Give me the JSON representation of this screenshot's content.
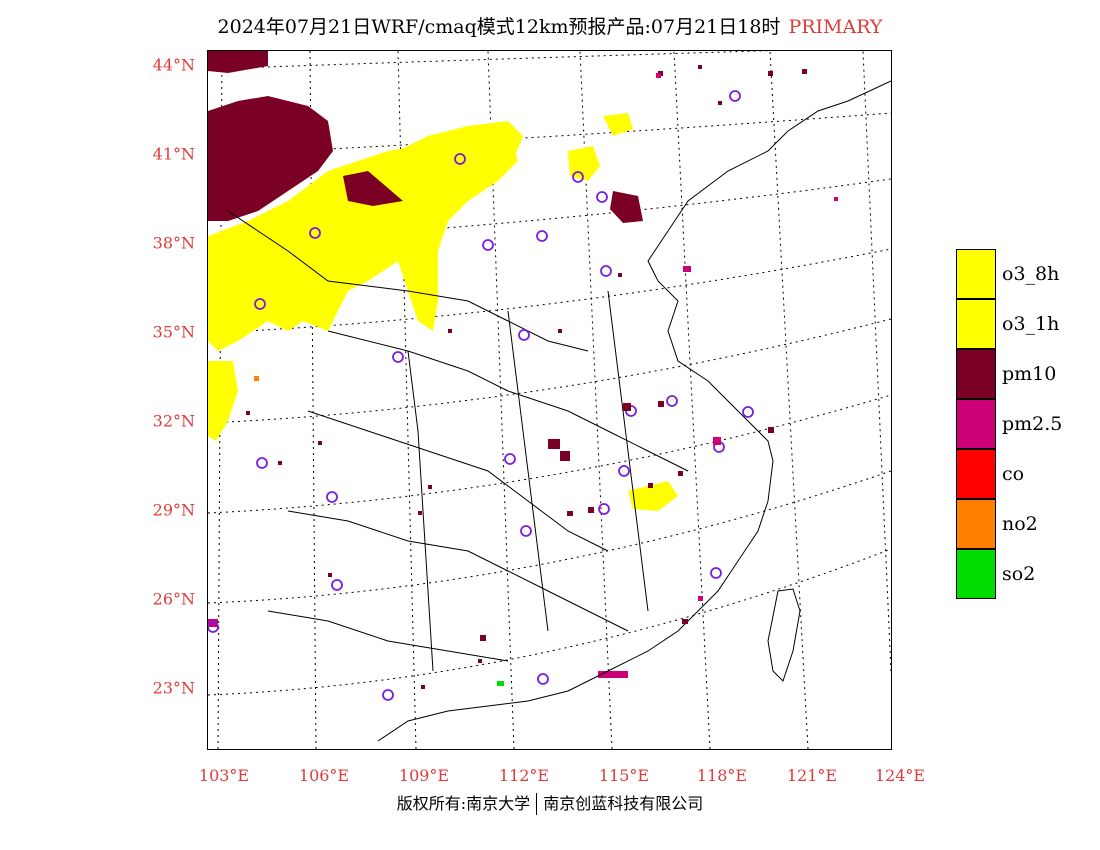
{
  "title": {
    "main": "2024年07月21日WRF/cmaq模式12km预报产品:07月21日18时",
    "tag": "PRIMARY",
    "tag_color": "#e03a3a"
  },
  "map": {
    "lat_labels": [
      "44°N",
      "41°N",
      "38°N",
      "35°N",
      "32°N",
      "29°N",
      "26°N",
      "23°N"
    ],
    "lon_labels": [
      "103°E",
      "106°E",
      "109°E",
      "112°E",
      "115°E",
      "118°E",
      "121°E",
      "124°E"
    ]
  },
  "legend": {
    "items": [
      {
        "label": "o3_8h",
        "color": "#ffff00"
      },
      {
        "label": "o3_1h",
        "color": "#ffff00"
      },
      {
        "label": "pm10",
        "color": "#7b0026"
      },
      {
        "label": "pm2.5",
        "color": "#cc0077"
      },
      {
        "label": "co",
        "color": "#ff0000"
      },
      {
        "label": "no2",
        "color": "#ff7f00"
      },
      {
        "label": "so2",
        "color": "#00dd00"
      }
    ]
  },
  "footer": {
    "left": "版权所有:南京大学",
    "right": "南京创蓝科技有限公司"
  },
  "colors": {
    "station_marker": "#7a1ee0",
    "axis_label": "#e03a3a"
  }
}
